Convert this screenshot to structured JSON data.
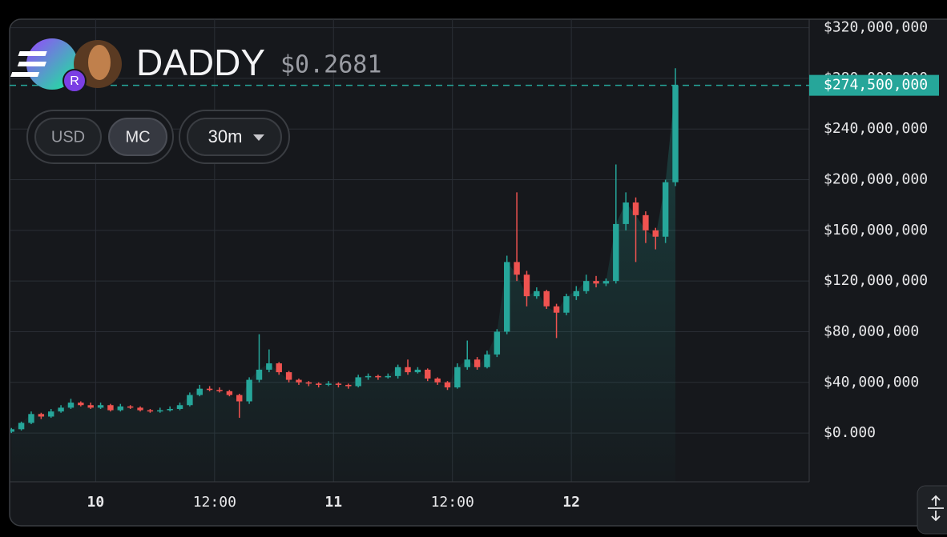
{
  "chart_data": {
    "type": "candlestick",
    "title": "DADDY",
    "subtitle": "$0.2681",
    "buttons": [
      "USD",
      "MC"
    ],
    "interval": "30m",
    "last_value": 274500000,
    "last_value_label": "$274,500,000",
    "up_color": "#26a69a",
    "down_color": "#ef5350",
    "grid": true,
    "xlim": [
      -8.6,
      72
    ],
    "xticks": [
      {
        "value": 0,
        "label": "10"
      },
      {
        "value": 12,
        "label": "12:00"
      },
      {
        "value": 24,
        "label": "11"
      },
      {
        "value": 36,
        "label": "12:00"
      },
      {
        "value": 48,
        "label": "12"
      }
    ],
    "ylim": [
      -38500000,
      326700000
    ],
    "yticks": [
      {
        "value": 0,
        "label": "$0.000"
      },
      {
        "value": 40000000,
        "label": "$40,000,000"
      },
      {
        "value": 80000000,
        "label": "$80,000,000"
      },
      {
        "value": 120000000,
        "label": "$120,000,000"
      },
      {
        "value": 160000000,
        "label": "$160,000,000"
      },
      {
        "value": 200000000,
        "label": "$200,000,000"
      },
      {
        "value": 240000000,
        "label": "$240,000,000"
      },
      {
        "value": 280000000,
        "label": "$280,000,000"
      },
      {
        "value": 320000000,
        "label": "$320,000,000"
      }
    ],
    "x": [
      -8.5,
      -7.5,
      -6.5,
      -5.5,
      -4.5,
      -3.5,
      -2.5,
      -1.5,
      -0.5,
      0.5,
      1.5,
      2.5,
      3.5,
      4.5,
      5.5,
      6.5,
      7.5,
      8.5,
      9.5,
      10.5,
      11.5,
      12.5,
      13.5,
      14.5,
      15.5,
      16.5,
      17.5,
      18.5,
      19.5,
      20.5,
      21.5,
      22.5,
      23.5,
      24.5,
      25.5,
      26.5,
      27.5,
      28.5,
      29.5,
      30.5,
      31.5,
      32.5,
      33.5,
      34.5,
      35.5,
      36.5,
      37.5,
      38.5,
      39.5,
      40.5,
      41.5,
      42.5,
      43.5,
      44.5,
      45.5,
      46.5,
      47.5,
      48.5,
      49.5,
      50.5,
      51.5,
      52.5,
      53.5,
      54.5,
      55.5,
      56.5,
      57.5,
      58.5
    ],
    "open": [
      1000000,
      3000000,
      8000000,
      15000000,
      13000000,
      17000000,
      20000000,
      24000000,
      22000000,
      20000000,
      22000000,
      18000000,
      21000000,
      20000000,
      18000000,
      17000000,
      18000000,
      19000000,
      22000000,
      30000000,
      35000000,
      34000000,
      33000000,
      30000000,
      25000000,
      42000000,
      50000000,
      55000000,
      48000000,
      42000000,
      40000000,
      39000000,
      38000000,
      39000000,
      38000000,
      37000000,
      44000000,
      45000000,
      44000000,
      45000000,
      52000000,
      48000000,
      50000000,
      43000000,
      40000000,
      36000000,
      52000000,
      58000000,
      52000000,
      62000000,
      80000000,
      135000000,
      125000000,
      108000000,
      112000000,
      100000000,
      95000000,
      108000000,
      112000000,
      120000000,
      118000000,
      120000000,
      165000000,
      182000000,
      172000000,
      160000000,
      155000000,
      198000000
    ],
    "high": [
      4000000,
      9000000,
      17000000,
      16000000,
      19000000,
      22000000,
      27000000,
      25000000,
      24000000,
      24000000,
      23000000,
      23000000,
      22000000,
      21000000,
      19000000,
      20000000,
      21000000,
      24000000,
      32000000,
      38000000,
      37000000,
      36000000,
      34000000,
      31000000,
      44000000,
      78000000,
      66000000,
      56000000,
      49000000,
      43000000,
      41000000,
      40000000,
      41000000,
      40000000,
      39000000,
      46000000,
      47000000,
      46000000,
      47000000,
      54000000,
      58000000,
      52000000,
      51000000,
      44000000,
      41000000,
      55000000,
      73000000,
      60000000,
      65000000,
      82000000,
      140000000,
      190000000,
      128000000,
      115000000,
      113000000,
      102000000,
      110000000,
      116000000,
      125000000,
      124000000,
      122000000,
      212000000,
      190000000,
      186000000,
      175000000,
      162000000,
      200000000,
      288000000
    ],
    "low": [
      0,
      2000000,
      7000000,
      11000000,
      12000000,
      16000000,
      19000000,
      21000000,
      19000000,
      19000000,
      17000000,
      17000000,
      19000000,
      17000000,
      16000000,
      16000000,
      17000000,
      18000000,
      21000000,
      29000000,
      33000000,
      32000000,
      29000000,
      12000000,
      23000000,
      40000000,
      48000000,
      46000000,
      40000000,
      38000000,
      37000000,
      36000000,
      37000000,
      36000000,
      35000000,
      36000000,
      42000000,
      42000000,
      43000000,
      43000000,
      46000000,
      47000000,
      41000000,
      38000000,
      34000000,
      35000000,
      50000000,
      50000000,
      51000000,
      60000000,
      78000000,
      120000000,
      100000000,
      106000000,
      98000000,
      75000000,
      93000000,
      105000000,
      110000000,
      115000000,
      116000000,
      118000000,
      160000000,
      135000000,
      150000000,
      145000000,
      150000000,
      195000000
    ],
    "close": [
      3000000,
      8000000,
      15000000,
      13000000,
      17000000,
      20000000,
      24000000,
      22000000,
      20000000,
      22000000,
      18000000,
      21000000,
      20000000,
      18000000,
      17000000,
      18000000,
      19000000,
      22000000,
      30000000,
      35000000,
      34000000,
      33000000,
      30000000,
      25000000,
      42000000,
      50000000,
      55000000,
      48000000,
      42000000,
      40000000,
      39000000,
      38000000,
      39000000,
      38000000,
      37000000,
      44000000,
      45000000,
      44000000,
      45000000,
      52000000,
      48000000,
      50000000,
      43000000,
      40000000,
      36000000,
      52000000,
      58000000,
      52000000,
      62000000,
      80000000,
      135000000,
      125000000,
      108000000,
      112000000,
      100000000,
      95000000,
      108000000,
      112000000,
      120000000,
      118000000,
      120000000,
      165000000,
      182000000,
      172000000,
      160000000,
      155000000,
      198000000,
      274500000
    ]
  }
}
